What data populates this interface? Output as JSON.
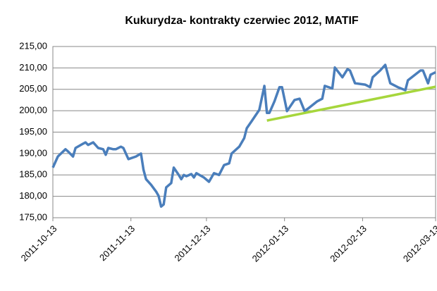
{
  "chart_data": {
    "type": "line",
    "title": "Kukurydza- kontrakty czerwiec 2012, MATIF",
    "xlim": [
      "2011-10-13",
      "2012-03-13"
    ],
    "xticks": [
      "2011-10-13",
      "2011-11-13",
      "2011-12-13",
      "2012-01-13",
      "2012-02-13",
      "2012-03-13"
    ],
    "ylim": [
      175,
      215
    ],
    "yticks": [
      {
        "value": 175,
        "label": "175,00"
      },
      {
        "value": 180,
        "label": "180,00"
      },
      {
        "value": 185,
        "label": "185,00"
      },
      {
        "value": 190,
        "label": "190,00"
      },
      {
        "value": 195,
        "label": "195,00"
      },
      {
        "value": 200,
        "label": "200,00"
      },
      {
        "value": 205,
        "label": "205,00"
      },
      {
        "value": 210,
        "label": "210,00"
      },
      {
        "value": 215,
        "label": "215,00"
      }
    ],
    "grid": true,
    "series": [
      {
        "color": "#4a7ebb",
        "x": [
          "2011-10-13",
          "2011-10-15",
          "2011-10-18",
          "2011-10-19",
          "2011-10-21",
          "2011-10-22",
          "2011-10-25",
          "2011-10-26",
          "2011-10-27",
          "2011-10-29",
          "2011-10-31",
          "2011-11-02",
          "2011-11-03",
          "2011-11-04",
          "2011-11-06",
          "2011-11-07",
          "2011-11-09",
          "2011-11-10",
          "2011-11-12",
          "2011-11-15",
          "2011-11-17",
          "2011-11-18",
          "2011-11-19",
          "2011-11-21",
          "2011-11-23",
          "2011-11-24",
          "2011-11-25",
          "2011-11-26",
          "2011-11-27",
          "2011-11-29",
          "2011-11-30",
          "2011-12-02",
          "2011-12-03",
          "2011-12-04",
          "2011-12-05",
          "2011-12-07",
          "2011-12-08",
          "2011-12-09",
          "2011-12-12",
          "2011-12-14",
          "2011-12-16",
          "2011-12-18",
          "2011-12-20",
          "2011-12-22",
          "2011-12-23",
          "2011-12-26",
          "2011-12-28",
          "2011-12-29",
          "2011-12-31",
          "2012-01-03",
          "2012-01-05",
          "2012-01-06",
          "2012-01-07",
          "2012-01-09",
          "2012-01-11",
          "2012-01-12",
          "2012-01-14",
          "2012-01-17",
          "2012-01-19",
          "2012-01-21",
          "2012-01-23",
          "2012-01-26",
          "2012-01-28",
          "2012-01-29",
          "2012-02-01",
          "2012-02-02",
          "2012-02-05",
          "2012-02-07",
          "2012-02-08",
          "2012-02-10",
          "2012-02-14",
          "2012-02-16",
          "2012-02-17",
          "2012-02-20",
          "2012-02-22",
          "2012-02-24",
          "2012-02-27",
          "2012-03-01",
          "2012-03-02",
          "2012-03-07",
          "2012-03-08",
          "2012-03-10",
          "2012-03-11",
          "2012-03-13"
        ],
        "values": [
          186.7,
          189.3,
          191,
          190.5,
          189.3,
          191.3,
          192.3,
          192.6,
          192,
          192.6,
          191.3,
          191,
          189.7,
          191.3,
          191,
          191,
          191.6,
          191.3,
          188.7,
          189.3,
          190,
          186.2,
          184,
          182.7,
          181.1,
          180.1,
          177.6,
          178.1,
          182.1,
          183.1,
          186.7,
          185,
          184,
          185,
          184.7,
          185.2,
          184.4,
          185.4,
          184.4,
          183.4,
          185.4,
          185,
          187.3,
          187.7,
          190,
          191.6,
          193.6,
          195.9,
          197.6,
          200.2,
          205.8,
          199.5,
          199.5,
          202.2,
          205.5,
          205.5,
          199.9,
          202.5,
          202.8,
          199.9,
          200.8,
          202.2,
          202.8,
          205.8,
          205.2,
          210.1,
          207.8,
          209.7,
          209.4,
          206.4,
          206.1,
          205.5,
          207.8,
          209.4,
          210.7,
          206.4,
          205.5,
          204.8,
          207.1,
          209.4,
          209.4,
          206.4,
          208.4,
          209
        ]
      },
      {
        "color": "#a6d63c",
        "x": [
          "2012-01-06",
          "2012-03-13"
        ],
        "values": [
          197.7,
          205.6
        ]
      }
    ]
  }
}
